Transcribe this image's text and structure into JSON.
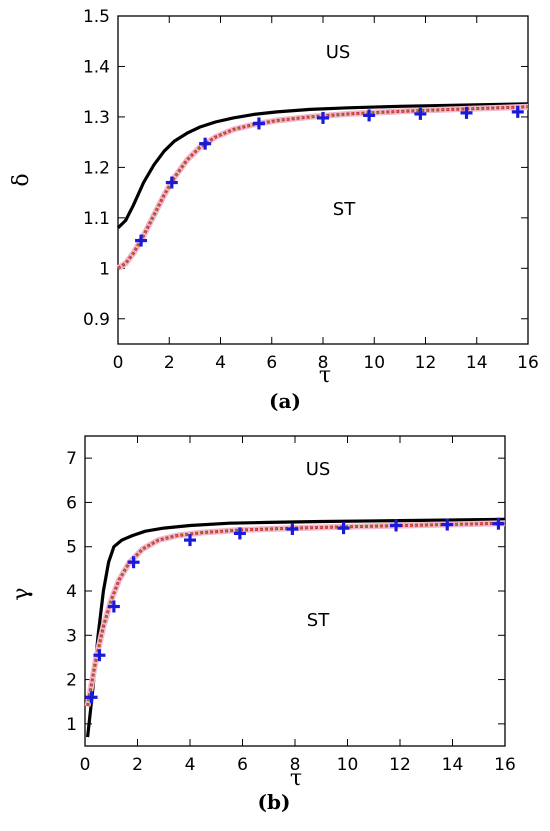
{
  "chart_data": [
    {
      "type": "line",
      "caption": "(a)",
      "xlabel": "τ",
      "ylabel": "δ",
      "xlim": [
        0,
        16
      ],
      "ylim": [
        0.85,
        1.5
      ],
      "xticks": [
        "0",
        "2",
        "4",
        "6",
        "8",
        "10",
        "12",
        "14",
        "16"
      ],
      "yticks": [
        "0.9",
        "1",
        "1.1",
        "1.2",
        "1.3",
        "1.4",
        "1.5"
      ],
      "region_labels": [
        "US",
        "ST"
      ],
      "series": [
        {
          "style": "solid",
          "color": "#000000",
          "x": [
            0,
            0.3,
            0.6,
            1.0,
            1.4,
            1.8,
            2.2,
            2.7,
            3.2,
            3.8,
            4.5,
            5.3,
            6.2,
            7.5,
            9,
            11,
            13,
            16
          ],
          "y": [
            1.08,
            1.095,
            1.125,
            1.17,
            1.205,
            1.232,
            1.252,
            1.268,
            1.28,
            1.29,
            1.298,
            1.305,
            1.31,
            1.315,
            1.318,
            1.321,
            1.323,
            1.326
          ]
        },
        {
          "style": "dotted",
          "color": "#cc3333",
          "x": [
            0,
            0.3,
            0.6,
            1.0,
            1.4,
            1.8,
            2.2,
            2.7,
            3.2,
            3.8,
            4.5,
            5.3,
            6.2,
            7.5,
            9,
            11,
            13,
            16
          ],
          "y": [
            1.0,
            1.01,
            1.03,
            1.065,
            1.105,
            1.145,
            1.18,
            1.215,
            1.24,
            1.26,
            1.275,
            1.285,
            1.293,
            1.3,
            1.306,
            1.311,
            1.315,
            1.32
          ]
        },
        {
          "style": "markers",
          "marker": "plus",
          "color": "#1a1adb",
          "x": [
            0.9,
            2.1,
            3.4,
            5.5,
            8.0,
            9.8,
            11.8,
            13.6,
            15.6
          ],
          "y": [
            1.055,
            1.17,
            1.247,
            1.287,
            1.298,
            1.303,
            1.306,
            1.308,
            1.31
          ]
        }
      ]
    },
    {
      "type": "line",
      "caption": "(b)",
      "xlabel": "τ",
      "ylabel": "γ",
      "xlim": [
        0,
        16
      ],
      "ylim": [
        0.5,
        7.5
      ],
      "xticks": [
        "0",
        "2",
        "4",
        "6",
        "8",
        "10",
        "12",
        "14",
        "16"
      ],
      "yticks": [
        "1",
        "2",
        "3",
        "4",
        "5",
        "6",
        "7"
      ],
      "region_labels": [
        "US",
        "ST"
      ],
      "series": [
        {
          "style": "solid",
          "color": "#000000",
          "x": [
            0.1,
            0.3,
            0.5,
            0.7,
            0.9,
            1.1,
            1.4,
            1.8,
            2.3,
            3,
            4,
            5.5,
            7,
            9,
            12,
            16
          ],
          "y": [
            0.7,
            1.8,
            3.0,
            4.0,
            4.65,
            5.0,
            5.15,
            5.25,
            5.35,
            5.42,
            5.48,
            5.53,
            5.55,
            5.57,
            5.59,
            5.62
          ]
        },
        {
          "style": "dotted",
          "color": "#cc3333",
          "x": [
            0.1,
            0.4,
            0.7,
            1.0,
            1.3,
            1.7,
            2.2,
            2.8,
            3.5,
            4.5,
            6,
            8,
            10,
            13,
            16
          ],
          "y": [
            1.4,
            2.4,
            3.2,
            3.8,
            4.25,
            4.65,
            4.95,
            5.15,
            5.25,
            5.32,
            5.38,
            5.42,
            5.45,
            5.49,
            5.53
          ]
        },
        {
          "style": "markers",
          "marker": "plus",
          "color": "#1a1adb",
          "x": [
            0.25,
            0.55,
            1.1,
            1.85,
            4.0,
            5.9,
            7.9,
            9.85,
            11.85,
            13.8,
            15.75
          ],
          "y": [
            1.6,
            2.55,
            3.65,
            4.65,
            5.15,
            5.3,
            5.4,
            5.42,
            5.48,
            5.5,
            5.52
          ]
        }
      ]
    }
  ]
}
